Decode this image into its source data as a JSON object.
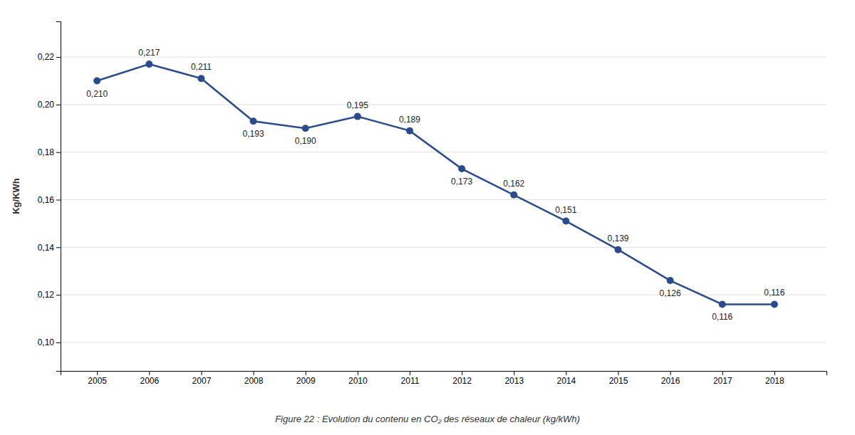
{
  "chart_data": {
    "type": "line",
    "title": "Figure 22 : Evolution du contenu en CO₂ des réseaux de chaleur (kg/kWh)",
    "y_label": "Kg/KWh",
    "x": [
      2005,
      2006,
      2007,
      2008,
      2009,
      2010,
      2011,
      2012,
      2013,
      2014,
      2015,
      2016,
      2017,
      2018
    ],
    "values": [
      0.21,
      0.217,
      0.211,
      0.193,
      0.19,
      0.195,
      0.189,
      0.173,
      0.162,
      0.151,
      0.139,
      0.126,
      0.116,
      0.116
    ],
    "value_labels": [
      "0,210",
      "0,217",
      "0,211",
      "0,193",
      "0,190",
      "0,195",
      "0,189",
      "0,173",
      "0,162",
      "0,151",
      "0,139",
      "0,126",
      "0,116",
      "0,116"
    ],
    "data_labels": true,
    "color": "#2B4C8C",
    "marker": "circle",
    "xlim": [
      2004.3,
      2019.0
    ],
    "xticks": [
      2005,
      2006,
      2007,
      2008,
      2009,
      2010,
      2011,
      2012,
      2013,
      2014,
      2015,
      2016,
      2017,
      2018
    ],
    "ylim": [
      0.088,
      0.235
    ],
    "yticks": [
      {
        "value": 0.1,
        "label": "0,10"
      },
      {
        "value": 0.12,
        "label": "0,12"
      },
      {
        "value": 0.14,
        "label": "0,14"
      },
      {
        "value": 0.16,
        "label": "0,16"
      },
      {
        "value": 0.18,
        "label": "0,18"
      },
      {
        "value": 0.2,
        "label": "0,20"
      },
      {
        "value": 0.22,
        "label": "0,22"
      }
    ],
    "grid": true
  }
}
